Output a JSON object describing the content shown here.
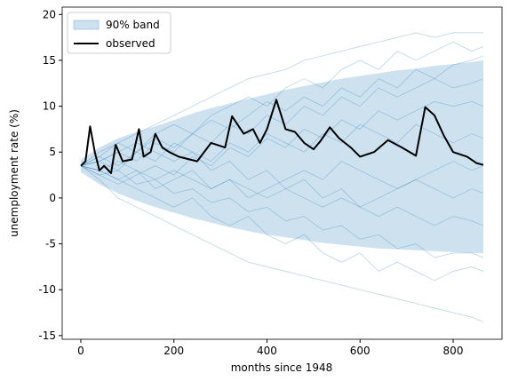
{
  "chart_data": {
    "type": "line",
    "xlabel": "months since 1948",
    "ylabel": "unemployment rate (%)",
    "xlim": [
      -40,
      905
    ],
    "ylim": [
      -15.4,
      20.8
    ],
    "xticks": [
      0,
      200,
      400,
      600,
      800
    ],
    "yticks": [
      -15,
      -10,
      -5,
      0,
      5,
      10,
      15,
      20
    ],
    "legend": "upper left",
    "band": {
      "name": "90% band",
      "color": "#1f77b4",
      "x": [
        0,
        40,
        80,
        120,
        160,
        200,
        240,
        280,
        320,
        360,
        400,
        440,
        480,
        520,
        560,
        600,
        640,
        680,
        720,
        760,
        800,
        840,
        865
      ],
      "lower": [
        2.8,
        1.5,
        0.5,
        -0.3,
        -1,
        -1.6,
        -2.2,
        -2.7,
        -3.2,
        -3.6,
        -4,
        -4.3,
        -4.6,
        -4.9,
        -5.1,
        -5.3,
        -5.5,
        -5.6,
        -5.7,
        -5.8,
        -5.9,
        -6,
        -6
      ],
      "upper": [
        4.2,
        5.5,
        6.5,
        7.2,
        7.8,
        8.5,
        9.2,
        9.8,
        10.3,
        10.8,
        11.3,
        11.8,
        12.2,
        12.6,
        13,
        13.3,
        13.6,
        13.9,
        14.1,
        14.4,
        14.6,
        14.8,
        15
      ]
    },
    "paths": {
      "color": "#1f77b4",
      "x": [
        0,
        40,
        80,
        120,
        160,
        200,
        240,
        280,
        320,
        360,
        400,
        440,
        480,
        520,
        560,
        600,
        640,
        680,
        720,
        760,
        800,
        840,
        865
      ],
      "values": [
        [
          3.5,
          4.5,
          6,
          7,
          8,
          9,
          10,
          11,
          12,
          13,
          13.5,
          14,
          15,
          15.5,
          16,
          16.5,
          17,
          17.5,
          18,
          17.5,
          18,
          18,
          18
        ],
        [
          3.5,
          2,
          0,
          -1,
          -2,
          -3,
          -4,
          -5,
          -6,
          -7,
          -7.5,
          -8,
          -8.5,
          -9,
          -9.5,
          -10,
          -10.5,
          -11,
          -11.5,
          -12,
          -12.5,
          -13,
          -13.5
        ],
        [
          3.5,
          5,
          6,
          5,
          7,
          8,
          7,
          9,
          10,
          11,
          10,
          12,
          13,
          12,
          14,
          15,
          14,
          16,
          15,
          16,
          17,
          16,
          16.5
        ],
        [
          3.5,
          3,
          2,
          1,
          0,
          -1,
          0,
          -2,
          -3,
          -2,
          -4,
          -5,
          -4,
          -6,
          -7,
          -6,
          -8,
          -7,
          -8,
          -9,
          -8,
          -7.5,
          -8
        ],
        [
          3.5,
          4,
          5,
          4,
          6,
          5,
          7,
          6,
          8,
          7,
          9,
          8,
          10,
          9,
          11,
          10,
          12,
          11,
          12,
          13,
          12,
          12.5,
          13
        ],
        [
          3.5,
          3,
          4,
          3,
          2,
          3,
          2,
          1,
          2,
          1,
          0,
          1,
          0,
          -1,
          0,
          -1,
          -2,
          -1,
          -2,
          -3,
          -2,
          -2.5,
          -3
        ],
        [
          3.5,
          4,
          3,
          5,
          4,
          6,
          5,
          4,
          6,
          5,
          7,
          6,
          5,
          7,
          6,
          8,
          7,
          6,
          8,
          7,
          6,
          7,
          6.5
        ],
        [
          3.5,
          2.5,
          3,
          1.5,
          2,
          0.5,
          1,
          -0.5,
          0,
          -1.5,
          -1,
          -2.5,
          -2,
          -3.5,
          -3,
          -4.5,
          -4,
          -5.5,
          -5,
          -6.5,
          -6,
          -6,
          -6.5
        ],
        [
          3.5,
          4.5,
          3.5,
          5,
          6.5,
          5.5,
          7,
          8.5,
          7.5,
          9,
          10.5,
          9.5,
          11,
          10,
          12,
          11,
          13,
          12,
          14,
          13,
          14.5,
          15,
          15.5
        ],
        [
          3.5,
          3,
          2,
          3,
          1,
          2,
          3,
          1,
          2,
          0,
          1,
          2,
          3,
          2,
          4,
          3,
          2,
          1,
          2,
          3,
          4,
          3,
          3.5
        ],
        [
          3.5,
          4,
          5,
          6,
          5,
          4,
          5,
          3,
          4,
          2,
          3,
          1,
          2,
          0,
          1,
          -1,
          0,
          1,
          2,
          1,
          0,
          1,
          0.5
        ],
        [
          3.5,
          2.5,
          1.5,
          2.5,
          3.5,
          2.5,
          4.5,
          3.5,
          5.5,
          4.5,
          6.5,
          5.5,
          7.5,
          6.5,
          8.5,
          7.5,
          9.5,
          8.5,
          9.5,
          10.5,
          10,
          10.5,
          10
        ]
      ]
    },
    "observed": {
      "name": "observed",
      "color": "#000000",
      "x": [
        0,
        10,
        20,
        30,
        40,
        50,
        65,
        75,
        90,
        110,
        125,
        135,
        150,
        160,
        175,
        190,
        210,
        250,
        280,
        310,
        325,
        350,
        370,
        385,
        400,
        420,
        440,
        460,
        480,
        500,
        515,
        535,
        555,
        580,
        600,
        630,
        660,
        690,
        720,
        740,
        760,
        780,
        800,
        830,
        850,
        865
      ],
      "values": [
        3.5,
        4,
        7.8,
        5,
        3,
        3.5,
        2.7,
        5.8,
        4,
        4.2,
        7.5,
        4.5,
        5,
        7,
        5.5,
        5,
        4.5,
        4,
        6,
        5.5,
        8.9,
        7,
        7.5,
        6,
        7.5,
        10.7,
        7.5,
        7.2,
        6,
        5.3,
        6.2,
        7.7,
        6.5,
        5.5,
        4.5,
        5,
        6.3,
        5.5,
        4.6,
        9.9,
        9,
        6.8,
        5,
        4.5,
        3.8,
        3.6
      ]
    }
  }
}
